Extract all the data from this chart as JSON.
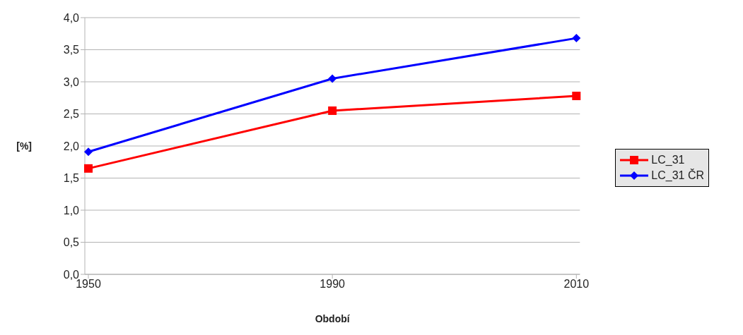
{
  "chart_data": {
    "type": "line",
    "xlabel": "Období",
    "ylabel": "[%]",
    "categories": [
      "1950",
      "1990",
      "2010"
    ],
    "series": [
      {
        "name": "LC_31",
        "color": "#ff0000",
        "marker": "square",
        "values": [
          1.65,
          2.55,
          2.78
        ]
      },
      {
        "name": "LC_31 ČR",
        "color": "#0000ff",
        "marker": "diamond",
        "values": [
          1.91,
          3.05,
          3.68
        ]
      }
    ],
    "ylim": [
      0,
      4
    ],
    "yticks": [
      {
        "value": 0,
        "label": "0,0"
      },
      {
        "value": 0.5,
        "label": "0,5"
      },
      {
        "value": 1,
        "label": "1,0"
      },
      {
        "value": 1.5,
        "label": "1,5"
      },
      {
        "value": 2,
        "label": "2,0"
      },
      {
        "value": 2.5,
        "label": "2,5"
      },
      {
        "value": 3,
        "label": "3,0"
      },
      {
        "value": 3.5,
        "label": "3,5"
      },
      {
        "value": 4,
        "label": "4,0"
      }
    ],
    "grid": "y",
    "legend": "right",
    "line_style": "solid"
  }
}
